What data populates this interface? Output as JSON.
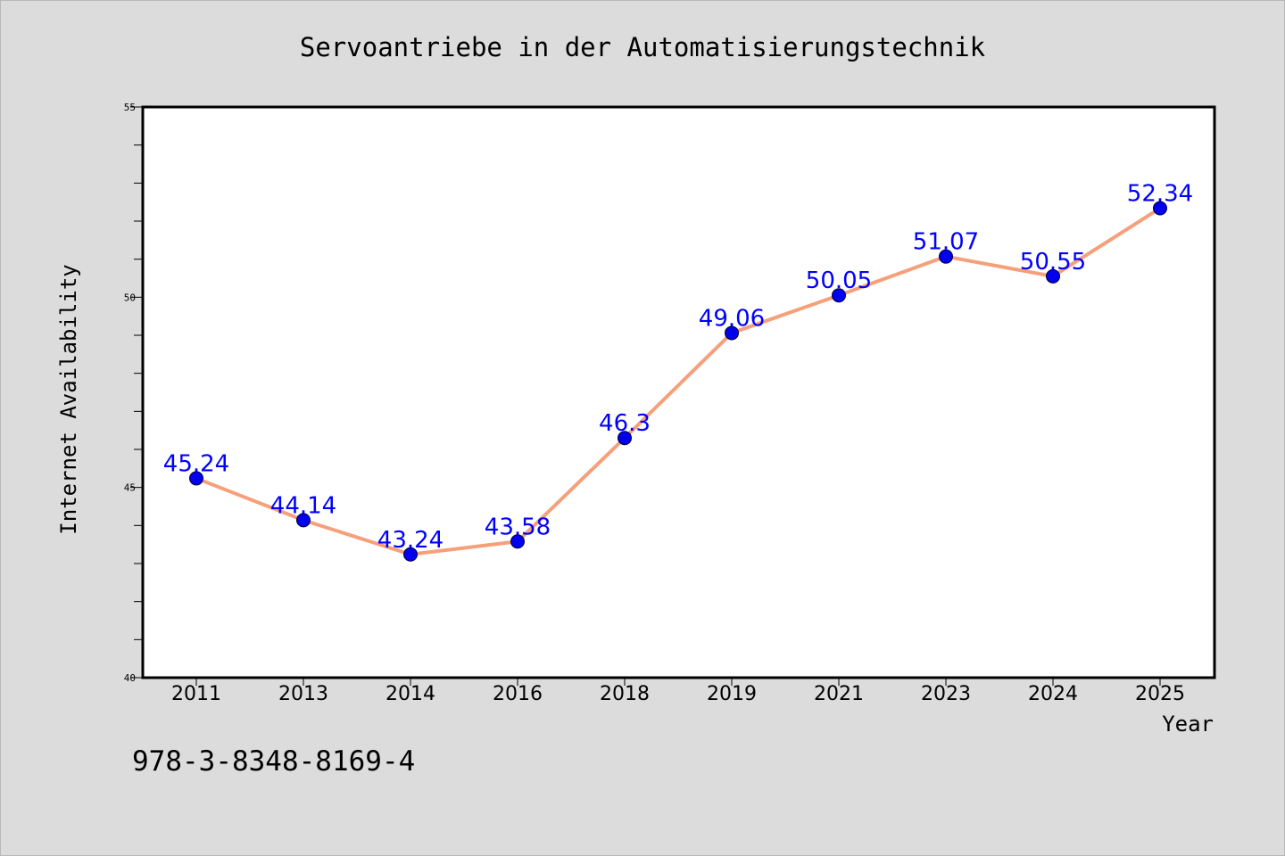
{
  "chart_data": {
    "type": "line",
    "title": "Servoantriebe in der Automatisierungstechnik",
    "xlabel": "Year",
    "ylabel": "Internet Availability",
    "categories": [
      "2011",
      "2013",
      "2014",
      "2016",
      "2018",
      "2019",
      "2021",
      "2023",
      "2024",
      "2025"
    ],
    "values": [
      45.24,
      44.14,
      43.24,
      43.58,
      46.3,
      49.06,
      50.05,
      51.07,
      50.55,
      52.34
    ],
    "value_labels": [
      "45.24",
      "44.14",
      "43.24",
      "43.58",
      "46.3",
      "49.06",
      "50.05",
      "51.07",
      "50.55",
      "52.34"
    ],
    "ylim": [
      40,
      55
    ],
    "y_major_ticks": [
      40,
      45,
      50,
      55
    ],
    "y_minor_step": 1,
    "grid": false,
    "line_color": "#f5a07a",
    "marker_color": "#0000ee",
    "label_color": "#0000ff"
  },
  "annotation": "978-3-8348-8169-4",
  "colors": {
    "background": "#dcdcdc",
    "plot_background": "#ffffff"
  }
}
